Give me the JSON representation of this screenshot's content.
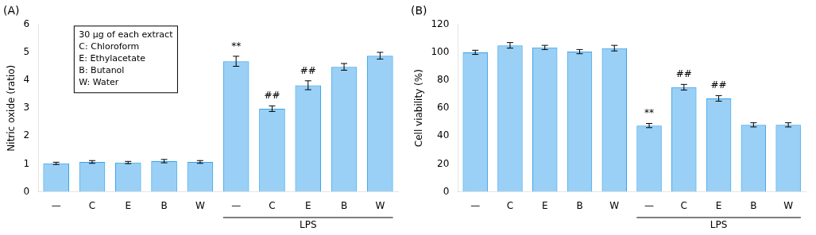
{
  "chart_data": [
    {
      "type": "bar",
      "title": "(A)",
      "ylabel": "Nitric oxide (ratio)",
      "categories": [
        "—",
        "C",
        "E",
        "B",
        "W",
        "—",
        "C",
        "E",
        "B",
        "W"
      ],
      "values": [
        1.02,
        1.07,
        1.05,
        1.1,
        1.07,
        4.68,
        2.98,
        3.82,
        4.48,
        4.88
      ],
      "errors": [
        0.04,
        0.05,
        0.04,
        0.06,
        0.05,
        0.18,
        0.1,
        0.16,
        0.12,
        0.12
      ],
      "ylim": [
        0,
        6
      ],
      "yticks": [
        0,
        1,
        2,
        3,
        4,
        5,
        6
      ],
      "grid": false,
      "annotations": [
        {
          "index": 5,
          "text": "**"
        },
        {
          "index": 6,
          "text": "##"
        },
        {
          "index": 7,
          "text": "##"
        }
      ],
      "group_label": {
        "text": "LPS",
        "from": 5,
        "to": 9
      },
      "note": [
        "30 μg of each extract",
        "C: Chloroform",
        "E: Ethylacetate",
        "B: Butanol",
        "W: Water"
      ]
    },
    {
      "type": "bar",
      "title": "(B)",
      "ylabel": "Cell viability (%)",
      "categories": [
        "—",
        "C",
        "E",
        "B",
        "W",
        "—",
        "C",
        "E",
        "B",
        "W"
      ],
      "values": [
        100.0,
        105.0,
        103.5,
        100.5,
        103.0,
        47.5,
        75.0,
        67.0,
        48.0,
        48.0
      ],
      "errors": [
        1.5,
        2.0,
        1.5,
        1.5,
        2.0,
        1.5,
        2.0,
        2.0,
        1.5,
        1.5
      ],
      "ylim": [
        0,
        120
      ],
      "yticks": [
        0,
        20,
        40,
        60,
        80,
        100,
        120
      ],
      "grid": false,
      "annotations": [
        {
          "index": 5,
          "text": "**"
        },
        {
          "index": 6,
          "text": "##"
        },
        {
          "index": 7,
          "text": "##"
        }
      ],
      "group_label": {
        "text": "LPS",
        "from": 5,
        "to": 9
      }
    }
  ]
}
